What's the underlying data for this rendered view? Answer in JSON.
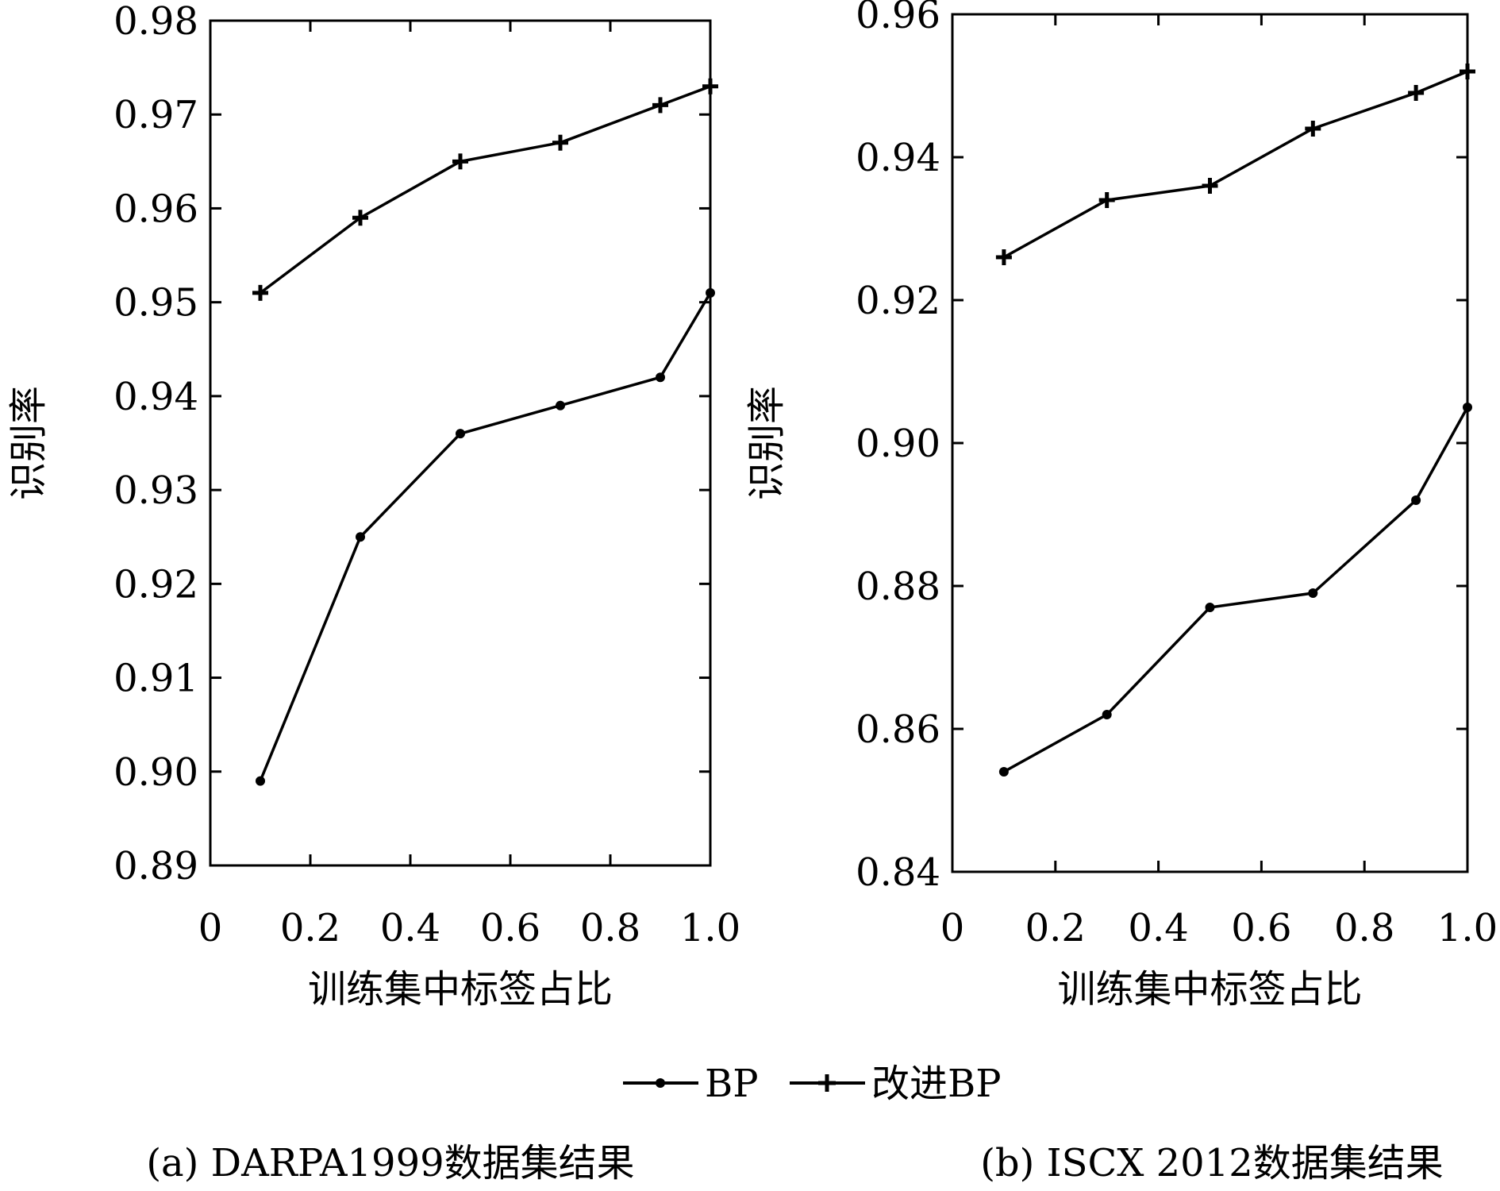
{
  "legend": {
    "items": [
      {
        "label": "BP",
        "marker": "dot"
      },
      {
        "label": "改进BP",
        "marker": "plus"
      }
    ]
  },
  "chart_data": [
    {
      "type": "line",
      "caption": "(a) DARPA1999数据集结果",
      "xlabel": "训练集中标签占比",
      "ylabel": "识别率",
      "xlim": [
        0,
        1.0
      ],
      "ylim": [
        0.89,
        0.98
      ],
      "x_ticks": [
        0,
        0.2,
        0.4,
        0.6,
        0.8,
        1.0
      ],
      "x_tick_labels": [
        "0",
        "0.2",
        "0.4",
        "0.6",
        "0.8",
        "1.0"
      ],
      "y_ticks": [
        0.89,
        0.9,
        0.91,
        0.92,
        0.93,
        0.94,
        0.95,
        0.96,
        0.97,
        0.98
      ],
      "y_tick_labels": [
        "0.89",
        "0.90",
        "0.91",
        "0.92",
        "0.93",
        "0.94",
        "0.95",
        "0.96",
        "0.97",
        "0.98"
      ],
      "x": [
        0.1,
        0.3,
        0.5,
        0.7,
        0.9,
        1.0
      ],
      "series": [
        {
          "name": "BP",
          "marker": "dot",
          "values": [
            0.899,
            0.925,
            0.936,
            0.939,
            0.942,
            0.951
          ]
        },
        {
          "name": "改进BP",
          "marker": "plus",
          "values": [
            0.951,
            0.959,
            0.965,
            0.967,
            0.971,
            0.973
          ]
        }
      ]
    },
    {
      "type": "line",
      "caption": "(b) ISCX 2012数据集结果",
      "xlabel": "训练集中标签占比",
      "ylabel": "识别率",
      "xlim": [
        0,
        1.0
      ],
      "ylim": [
        0.84,
        0.96
      ],
      "x_ticks": [
        0,
        0.2,
        0.4,
        0.6,
        0.8,
        1.0
      ],
      "x_tick_labels": [
        "0",
        "0.2",
        "0.4",
        "0.6",
        "0.8",
        "1.0"
      ],
      "y_ticks": [
        0.84,
        0.86,
        0.88,
        0.9,
        0.92,
        0.94,
        0.96
      ],
      "y_tick_labels": [
        "0.84",
        "0.86",
        "0.88",
        "0.90",
        "0.92",
        "0.94",
        "0.96"
      ],
      "x": [
        0.1,
        0.3,
        0.5,
        0.7,
        0.9,
        1.0
      ],
      "series": [
        {
          "name": "BP",
          "marker": "dot",
          "values": [
            0.854,
            0.862,
            0.877,
            0.879,
            0.892,
            0.905
          ]
        },
        {
          "name": "改进BP",
          "marker": "plus",
          "values": [
            0.926,
            0.934,
            0.936,
            0.944,
            0.949,
            0.952
          ]
        }
      ]
    }
  ]
}
